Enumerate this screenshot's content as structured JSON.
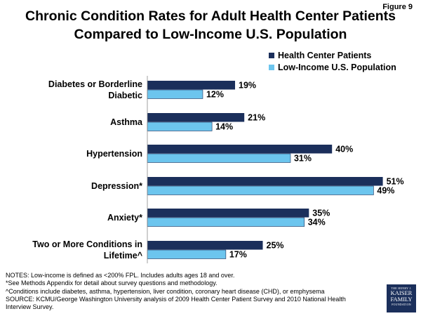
{
  "figure_label": "Figure 9",
  "title_line1": "Chronic Condition Rates for Adult Health Center Patients",
  "title_line2": "Compared to Low-Income U.S. Population",
  "colors": {
    "series1": "#1b2f5b",
    "series2": "#6cc5ee",
    "text": "#000000"
  },
  "chart_data": {
    "type": "bar",
    "orientation": "horizontal",
    "title": "Chronic Condition Rates for Adult Health Center Patients Compared to Low-Income U.S. Population",
    "categories": [
      [
        "Diabetes or Borderline",
        "Diabetic"
      ],
      [
        "Asthma"
      ],
      [
        "Hypertension"
      ],
      [
        "Depression*"
      ],
      [
        "Anxiety*"
      ],
      [
        "Two or More Conditions in",
        "Lifetime^"
      ]
    ],
    "series": [
      {
        "name": "Health Center Patients",
        "values": [
          19,
          21,
          40,
          51,
          35,
          25
        ],
        "labels": [
          "19%",
          "21%",
          "40%",
          "51%",
          "35%",
          "25%"
        ]
      },
      {
        "name": "Low-Income U.S. Population",
        "values": [
          12,
          14,
          31,
          49,
          34,
          17
        ],
        "labels": [
          "12%",
          "14%",
          "31%",
          "49%",
          "34%",
          "17%"
        ]
      }
    ],
    "xlim": [
      0,
      60
    ],
    "legend_position": "top-right"
  },
  "notes": [
    "NOTES: Low-income is defined as <200% FPL. Includes adults ages 18 and over.",
    "*See Methods Appendix for detail about survey questions and methodology.",
    "^Conditions include diabetes, asthma, hypertension, liver condition, coronary heart disease (CHD), or emphysema",
    "SOURCE: KCMU/George Washington University analysis of 2009 Health Center Patient Survey and 2010 National Health",
    "Interview Survey."
  ],
  "logo": {
    "line1": "THE HENRY J.",
    "line2": "KAISER",
    "line3": "FAMILY",
    "line4": "FOUNDATION"
  }
}
